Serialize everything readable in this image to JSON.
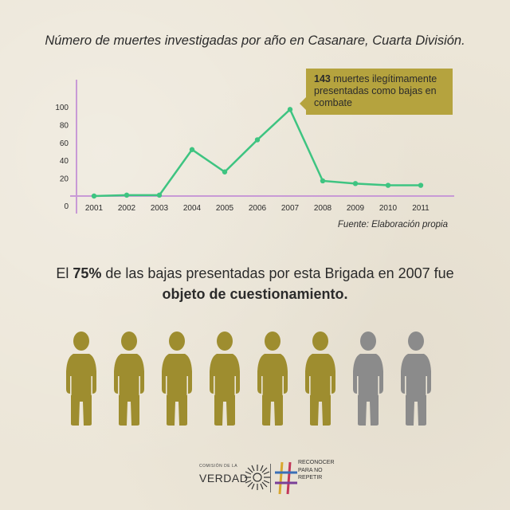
{
  "title": "Número de muertes investigadas por año en Casanare, Cuarta División.",
  "callout": {
    "value": "143",
    "text": " muertes ilegítimamente presentadas como bajas en combate"
  },
  "source": "Fuente: Elaboración propia",
  "statement": {
    "part1": "El ",
    "percent": "75%",
    "part2": " de las bajas presentadas por esta Brigada en 2007 fue",
    "bold_line": "objeto de cuestionamiento."
  },
  "colors": {
    "line": "#3ec481",
    "axis": "#c89ad6",
    "gold": "#9e8d2f",
    "gray": "#8b8b8b",
    "callout": "#b5a33e"
  },
  "chart_data": {
    "type": "line",
    "title": "Número de muertes investigadas por año en Casanare, Cuarta División.",
    "categories": [
      "2001",
      "2002",
      "2003",
      "2004",
      "2005",
      "2006",
      "2007",
      "2008",
      "2009",
      "2010",
      "2011"
    ],
    "values": [
      0,
      1,
      1,
      52,
      27,
      63,
      97,
      17,
      14,
      12,
      12
    ],
    "yticks": [
      0,
      20,
      40,
      60,
      80,
      100
    ],
    "ylim": [
      0,
      100
    ],
    "xlabel": "",
    "ylabel": "",
    "annotation": "143 muertes ilegítimamente presentadas como bajas en combate"
  },
  "people": {
    "total": 8,
    "highlighted": 6,
    "icon": "person-icon"
  },
  "footer": {
    "cev_small": "COMISIÓN DE LA",
    "cev_big": "VERDAD",
    "rep_line1": "Reconocer",
    "rep_line2": "para no",
    "rep_line3": "repetir"
  }
}
